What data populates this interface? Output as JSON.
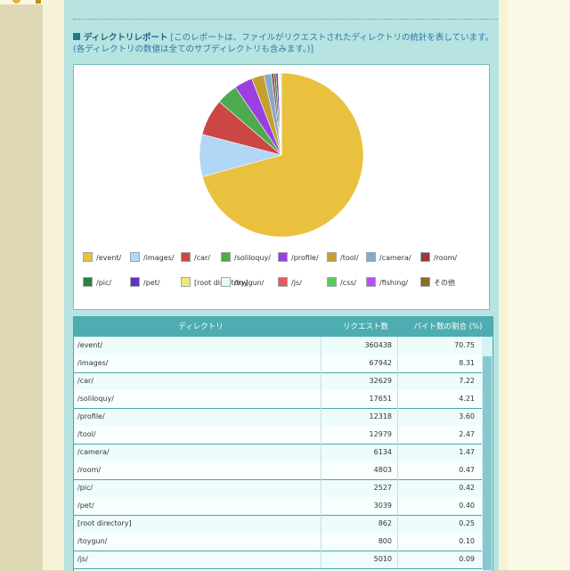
{
  "report": {
    "title": "ディレクトリレポート",
    "description": "[このレポートは、ファイルがリクエストされたディレクトリの統計を表しています。(各ディレクトリの数値は全てのサブディレクトリも含みます。)]"
  },
  "chart_data": {
    "type": "pie",
    "series": [
      {
        "name": "/event/",
        "value": 70.75,
        "color": "#e9c13f"
      },
      {
        "name": "/images/",
        "value": 8.31,
        "color": "#b2d6f6"
      },
      {
        "name": "/car/",
        "value": 7.22,
        "color": "#cc4646"
      },
      {
        "name": "/soliloquy/",
        "value": 4.21,
        "color": "#4eaa4e"
      },
      {
        "name": "/profile/",
        "value": 3.6,
        "color": "#9a3fe0"
      },
      {
        "name": "/tool/",
        "value": 2.47,
        "color": "#c4a032"
      },
      {
        "name": "/camera/",
        "value": 1.47,
        "color": "#88a9c6"
      },
      {
        "name": "/room/",
        "value": 0.47,
        "color": "#963a3a"
      },
      {
        "name": "/pic/",
        "value": 0.42,
        "color": "#2e7f3a"
      },
      {
        "name": "/pet/",
        "value": 0.4,
        "color": "#6a2ecb"
      },
      {
        "name": "[root directory]",
        "value": 0.25,
        "color": "#f6e679"
      },
      {
        "name": "/toygun/",
        "value": 0.1,
        "color": "#e6f9f9"
      },
      {
        "name": "/js/",
        "value": 0.09,
        "color": "#e85858"
      },
      {
        "name": "/css/",
        "value": 0.05,
        "color": "#58cc58"
      },
      {
        "name": "/fishing/",
        "value": 0.05,
        "color": "#b652f2"
      },
      {
        "name": "その他",
        "value": 0.14,
        "color": "#8c6a28"
      }
    ]
  },
  "table": {
    "headers": {
      "dir": "ディレクトリ",
      "requests": "リクエスト数",
      "bytes_pct": "バイト数の割合 (%)"
    },
    "rows": [
      {
        "dir": "/event/",
        "requests": "360438",
        "pct": "70.75"
      },
      {
        "dir": "/images/",
        "requests": "67942",
        "pct": "8.31"
      },
      {
        "dir": "/car/",
        "requests": "32629",
        "pct": "7.22"
      },
      {
        "dir": "/soliloquy/",
        "requests": "17651",
        "pct": "4.21"
      },
      {
        "dir": "/profile/",
        "requests": "12318",
        "pct": "3.60"
      },
      {
        "dir": "/tool/",
        "requests": "12979",
        "pct": "2.47"
      },
      {
        "dir": "/camera/",
        "requests": "6134",
        "pct": "1.47"
      },
      {
        "dir": "/room/",
        "requests": "4803",
        "pct": "0.47"
      },
      {
        "dir": "/pic/",
        "requests": "2527",
        "pct": "0.42"
      },
      {
        "dir": "/pet/",
        "requests": "3039",
        "pct": "0.40"
      },
      {
        "dir": "[root directory]",
        "requests": "862",
        "pct": "0.25"
      },
      {
        "dir": "/toygun/",
        "requests": "800",
        "pct": "0.10"
      },
      {
        "dir": "/js/",
        "requests": "5010",
        "pct": "0.09"
      }
    ]
  }
}
